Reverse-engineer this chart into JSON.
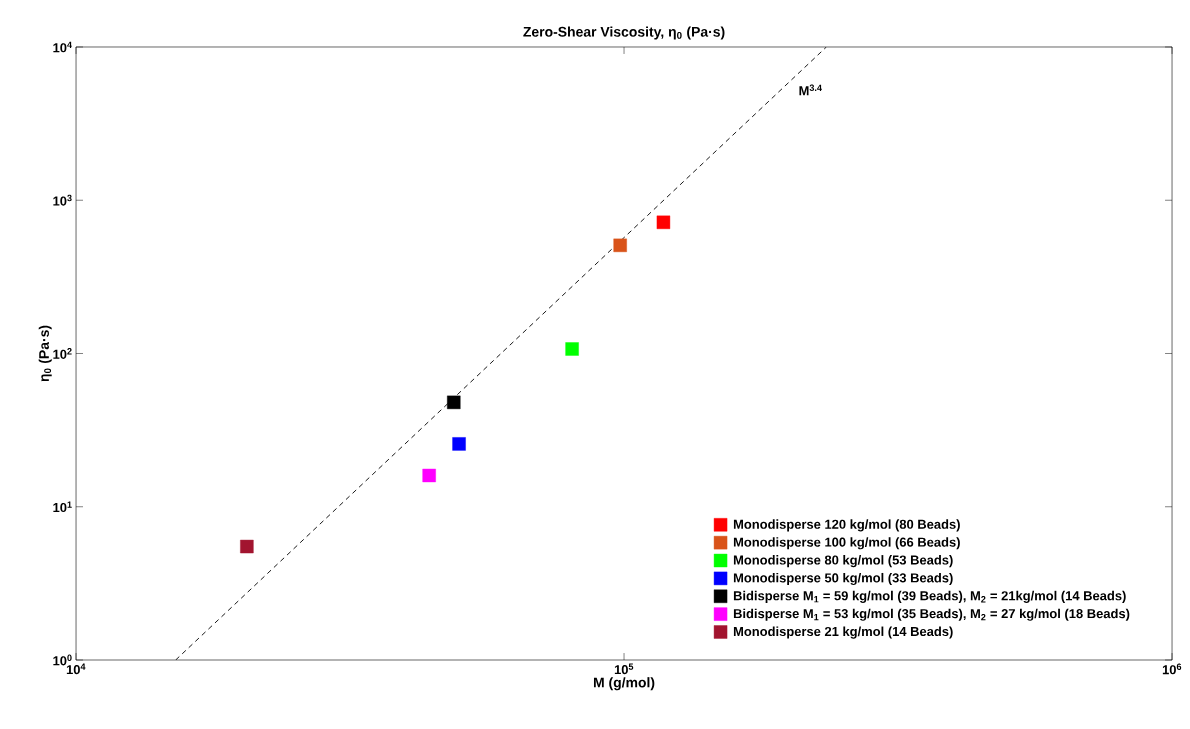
{
  "chart_data": {
    "type": "scatter",
    "title": "Zero-Shear Viscosity, η$_{0}$ (Pa·s)",
    "xlabel": "M (g/mol)",
    "ylabel": "η$_{0}$ (Pa·s)",
    "log": "xy",
    "marker": "square",
    "legend": "bottom right",
    "grid": false,
    "xlim": [
      10000,
      1000000
    ],
    "ylim": [
      1,
      10000
    ],
    "xticks": [
      {
        "value": 10000,
        "label": "10$^{4}$"
      },
      {
        "value": 100000,
        "label": "10$^{5}$"
      },
      {
        "value": 1000000,
        "label": "10$^{6}$"
      }
    ],
    "yticks": [
      {
        "value": 1,
        "label": "10$^{0}$"
      },
      {
        "value": 10,
        "label": "10$^{1}$"
      },
      {
        "value": 100,
        "label": "10$^{2}$"
      },
      {
        "value": 1000,
        "label": "10$^{3}$"
      },
      {
        "value": 10000,
        "label": "10$^{4}$"
      }
    ],
    "series": [
      {
        "type": "line",
        "name": "M$^{3.4}$",
        "line_style": "dashed",
        "marker": "none",
        "color": "#000000",
        "x": [
          15200,
          234000
        ],
        "values": [
          1,
          10000
        ]
      },
      {
        "name": "Monodisperse 120 kg/mol (80 Beads)",
        "color": "#ff0000",
        "x": [
          118000
        ],
        "values": [
          718
        ]
      },
      {
        "name": "Monodisperse 100 kg/mol (66 Beads)",
        "color": "#d95319",
        "x": [
          98400
        ],
        "values": [
          508
        ]
      },
      {
        "name": "Monodisperse   80 kg/mol (53 Beads)",
        "color": "#00ff00",
        "x": [
          80400
        ],
        "values": [
          107
        ]
      },
      {
        "name": "Monodisperse   50 kg/mol (33 Beads)",
        "color": "#0000ff",
        "x": [
          50000
        ],
        "values": [
          25.7
        ]
      },
      {
        "name": "Bidisperse  M$_{1}$ = 59 kg/mol (39 Beads), M$_{2}$ = 21kg/mol (14 Beads)",
        "color": "#000000",
        "x": [
          48900
        ],
        "values": [
          48
        ]
      },
      {
        "name": "Bidisperse  M$_{1}$ = 53 kg/mol (35 Beads), M$_{2}$ = 27 kg/mol (18 Beads)",
        "color": "#ff00ff",
        "x": [
          44100
        ],
        "values": [
          16
        ]
      },
      {
        "name": "Monodisperse  21 kg/mol (14 Beads)",
        "color": "#a2142f",
        "x": [
          20500
        ],
        "values": [
          5.5
        ]
      }
    ]
  }
}
